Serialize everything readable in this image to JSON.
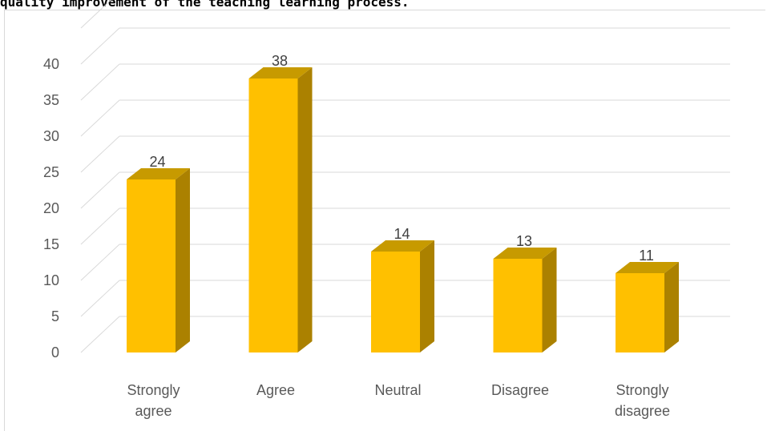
{
  "caption": "quality improvement of the teaching learning process.",
  "chart_data": {
    "type": "bar",
    "style": "3d-column",
    "categories": [
      "Strongly\nagree",
      "Agree",
      "Neutral",
      "Disagree",
      "Strongly\ndisagree"
    ],
    "values": [
      24,
      38,
      14,
      13,
      11
    ],
    "data_labels": [
      "24",
      "38",
      "14",
      "13",
      "11"
    ],
    "title": "",
    "xlabel": "",
    "ylabel": "",
    "ylim": [
      0,
      40
    ],
    "yticks": [
      0,
      5,
      10,
      15,
      20,
      25,
      30,
      35,
      40
    ],
    "grid": true,
    "legend": "none",
    "colors": {
      "front": "#ffc000",
      "side": "#ab8100",
      "top": "#c79a00",
      "grid": "#d9d9d9",
      "text": "#595959"
    }
  }
}
